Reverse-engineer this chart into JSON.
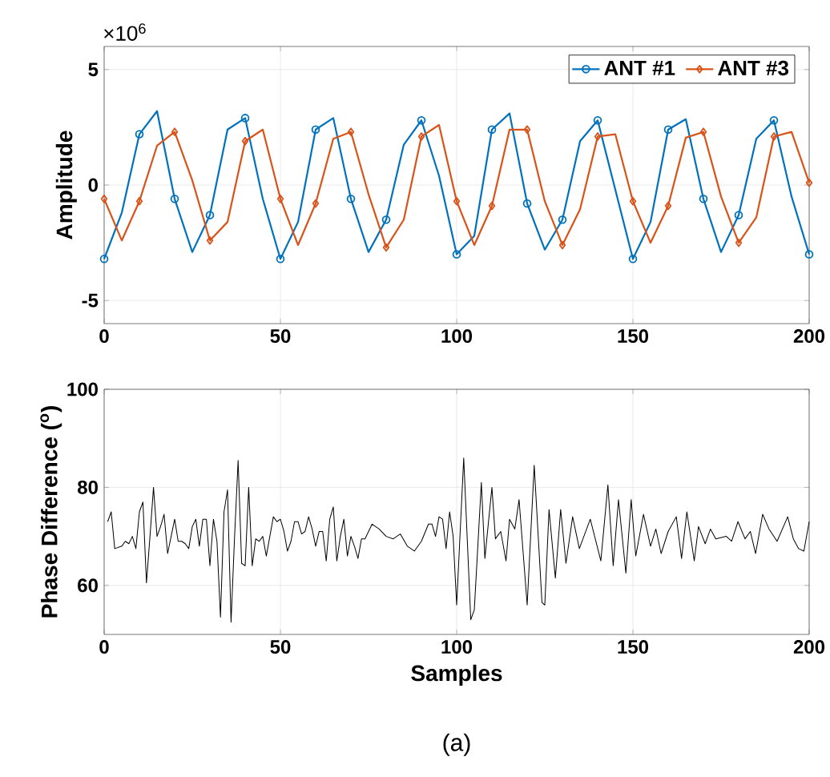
{
  "chart_data": [
    {
      "type": "line",
      "ylabel": "Amplitude",
      "annotations": [
        "×10$^{6}$"
      ],
      "x": [
        0,
        5,
        10,
        15,
        20,
        25,
        30,
        35,
        40,
        45,
        50,
        55,
        60,
        65,
        70,
        75,
        80,
        85,
        90,
        95,
        100,
        105,
        110,
        115,
        120,
        125,
        130,
        135,
        140,
        145,
        150,
        155,
        160,
        165,
        170,
        175,
        180,
        185,
        190,
        195,
        200
      ],
      "series": [
        {
          "name": "ANT #1",
          "color": "#0072bd",
          "marker": "circle",
          "values": [
            -3.2,
            -1.2,
            2.2,
            3.2,
            -0.6,
            -2.9,
            -1.3,
            2.4,
            2.9,
            -0.6,
            -3.2,
            -1.6,
            2.4,
            2.9,
            -0.6,
            -2.9,
            -1.5,
            1.75,
            2.8,
            0.4,
            -3.0,
            -2.2,
            2.4,
            3.1,
            -0.8,
            -2.8,
            -1.5,
            1.9,
            2.8,
            -0.2,
            -3.2,
            -1.6,
            2.4,
            2.85,
            -0.6,
            -2.9,
            -1.3,
            2.0,
            2.8,
            -0.5,
            -3.0
          ]
        },
        {
          "name": "ANT #3",
          "color": "#d95319",
          "marker": "diamond",
          "values": [
            -0.6,
            -2.4,
            -0.7,
            1.7,
            2.3,
            0.2,
            -2.4,
            -1.6,
            1.9,
            2.4,
            -0.6,
            -2.6,
            -0.8,
            2.0,
            2.3,
            -0.4,
            -2.7,
            -1.5,
            2.1,
            2.6,
            -0.7,
            -2.6,
            -0.9,
            2.4,
            2.4,
            -0.7,
            -2.6,
            -1.05,
            2.1,
            2.2,
            -0.7,
            -2.5,
            -0.9,
            2.05,
            2.3,
            -0.5,
            -2.5,
            -1.4,
            2.1,
            2.3,
            0.1
          ]
        }
      ],
      "xlim": [
        0,
        200
      ],
      "xticks": [
        0,
        50,
        100,
        150,
        200
      ],
      "ylim": [
        -6,
        6
      ],
      "yticks": [
        -5,
        0,
        5
      ],
      "grid": true,
      "legend": "top right"
    },
    {
      "type": "line",
      "xlabel": "Samples",
      "ylabel": "Phase Difference ($^{o}$)",
      "annotations": [
        "(a)"
      ],
      "x": [
        1,
        2,
        3,
        5,
        6,
        7,
        8,
        9,
        10,
        11,
        12,
        13,
        14,
        15,
        16,
        17,
        18,
        19,
        20,
        21,
        22,
        23,
        24,
        25,
        26,
        27,
        28,
        29,
        30,
        31,
        32,
        33,
        34,
        35,
        36,
        37,
        38,
        39,
        40,
        41,
        42,
        43,
        44,
        45,
        46,
        47,
        48,
        49,
        50,
        51,
        52,
        53,
        54,
        55,
        56,
        57,
        58,
        59,
        60,
        61,
        62,
        63,
        64,
        65,
        66,
        67,
        68,
        69,
        70,
        71,
        72,
        73,
        74,
        76,
        78,
        80,
        82,
        84,
        86,
        88,
        90,
        92,
        93,
        94,
        95,
        96,
        97,
        98,
        99,
        100,
        102,
        104,
        105,
        107,
        108,
        110,
        111,
        112.5,
        114,
        115,
        116.5,
        117.7,
        120,
        122,
        124.2,
        125,
        126.2,
        128,
        129.5,
        131,
        132.9,
        134.8,
        137.9,
        140.9,
        142.9,
        144.4,
        145.9,
        148,
        149.5,
        150.8,
        153,
        155,
        156.5,
        158,
        160,
        162.3,
        163.8,
        165.3,
        167.4,
        168.6,
        170.5,
        172,
        173.5,
        176.5,
        178,
        179.8,
        181.8,
        183.3,
        184.8,
        186.8,
        188.6,
        190.9,
        193.9,
        195.5,
        197,
        198.5,
        200
      ],
      "series": [
        {
          "color": "#000000",
          "values": [
            73,
            75,
            67.5,
            68,
            69,
            68.5,
            70,
            67.5,
            75,
            77,
            60.5,
            70,
            80,
            70,
            72,
            74.5,
            66.5,
            70,
            73.5,
            69,
            69,
            68.5,
            67.5,
            72,
            73.5,
            68,
            73.5,
            73.5,
            64,
            73.5,
            69,
            53.5,
            75,
            79.5,
            52.5,
            70,
            85.5,
            64.5,
            64,
            80,
            64,
            69.5,
            69,
            70,
            66,
            70,
            74,
            73,
            73.5,
            71,
            67,
            69,
            73,
            73,
            70.5,
            71,
            74,
            71.5,
            68,
            71,
            71,
            65,
            73.5,
            76,
            65,
            70,
            73.5,
            66,
            70,
            68,
            65.5,
            69.5,
            69.5,
            72.5,
            71.5,
            70,
            69.5,
            70.5,
            68,
            67,
            69,
            72.5,
            72.5,
            70,
            74,
            73.5,
            67.5,
            75,
            70,
            56,
            86,
            53,
            55,
            81,
            65.5,
            80,
            69.5,
            71,
            65,
            73.5,
            71.5,
            77.5,
            56,
            84.5,
            56.5,
            56,
            75.5,
            61.5,
            75.5,
            64.5,
            74,
            67.5,
            73.5,
            65,
            80.5,
            64,
            77.5,
            62.5,
            77.5,
            66,
            74.5,
            68,
            71.5,
            66.5,
            71,
            74,
            65.5,
            75,
            65,
            72,
            68.5,
            71.5,
            69.5,
            70,
            69,
            73,
            69.5,
            71,
            66.5,
            74.5,
            71.5,
            69,
            74,
            69.5,
            67.5,
            67,
            73
          ]
        }
      ],
      "xlim": [
        0,
        200
      ],
      "xticks": [
        0,
        50,
        100,
        150,
        200
      ],
      "ylim": [
        50,
        100
      ],
      "yticks": [
        60,
        80,
        100
      ],
      "grid": true
    }
  ]
}
